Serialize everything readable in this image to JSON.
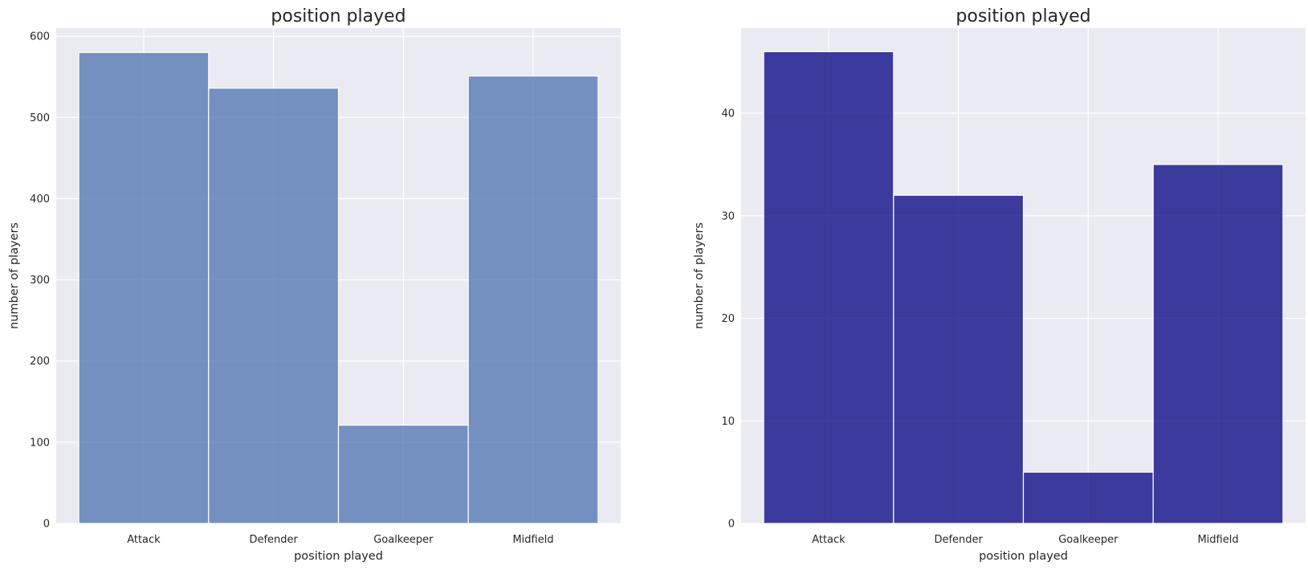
{
  "chart_data": [
    {
      "type": "bar",
      "title": "position played",
      "xlabel": "position played",
      "ylabel": "number of players",
      "categories": [
        "Attack",
        "Defender",
        "Goalkeeper",
        "Midfield"
      ],
      "values": [
        580,
        536,
        121,
        551
      ],
      "ylim": [
        0,
        610
      ],
      "yticks": [
        0,
        100,
        200,
        300,
        400,
        500,
        600
      ],
      "grid": true,
      "color": "#4c72b0",
      "opacity": 0.75
    },
    {
      "type": "bar",
      "title": "position played",
      "xlabel": "position played",
      "ylabel": "number of players",
      "categories": [
        "Attack",
        "Defender",
        "Goalkeeper",
        "Midfield"
      ],
      "values": [
        46,
        32,
        5,
        35
      ],
      "ylim": [
        0,
        48.3
      ],
      "yticks": [
        0,
        10,
        20,
        30,
        40
      ],
      "grid": true,
      "color": "#000080",
      "opacity": 0.75
    }
  ]
}
